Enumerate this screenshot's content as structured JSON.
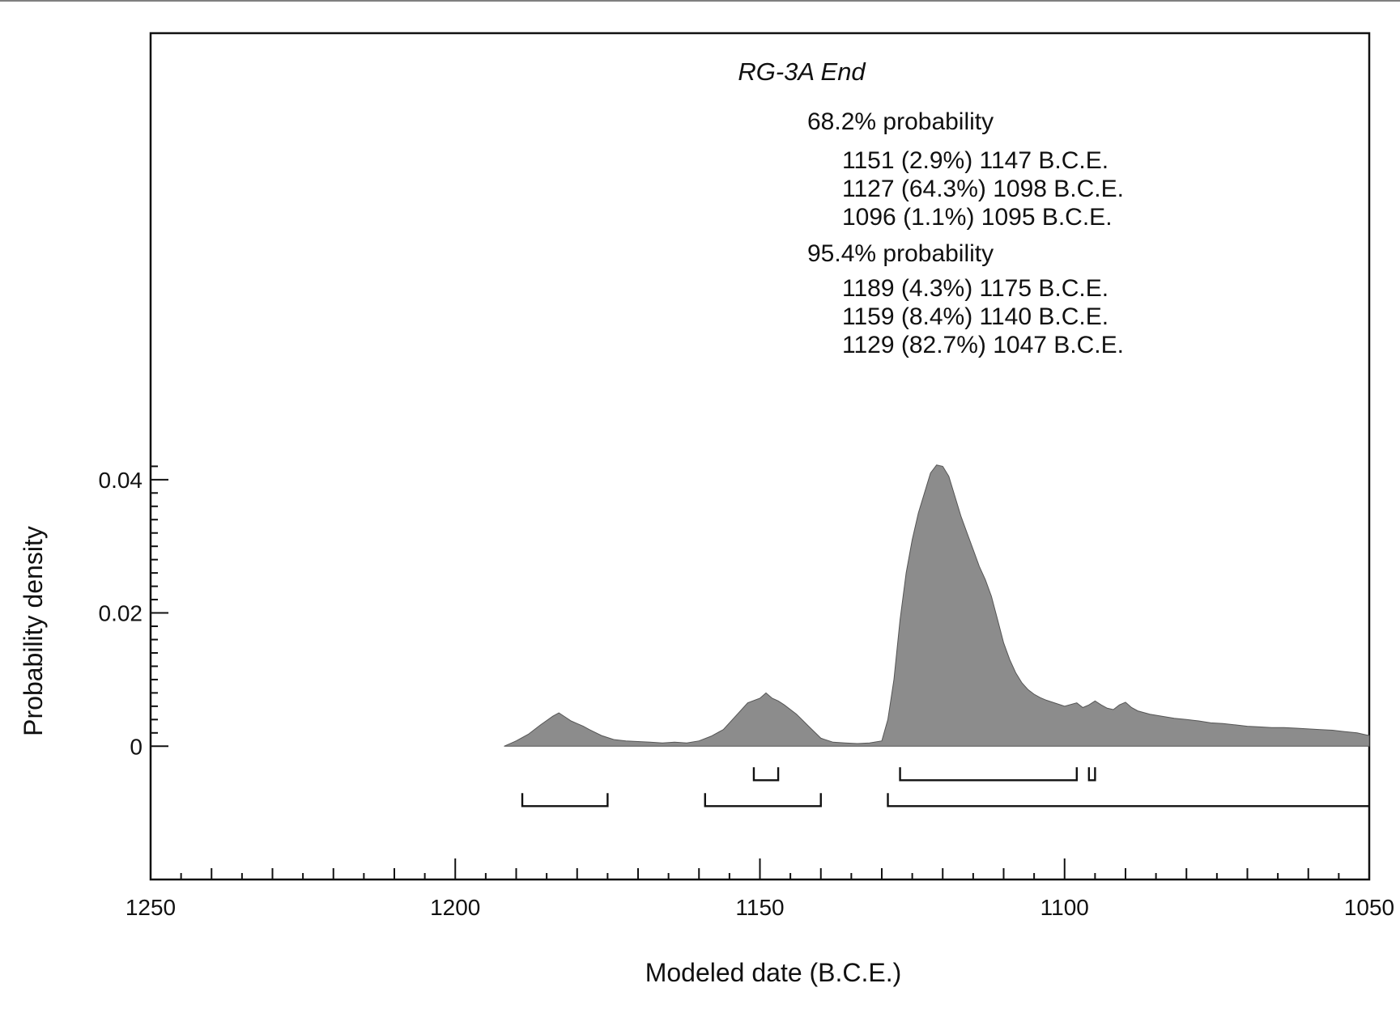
{
  "chart_data": {
    "type": "area",
    "title": "RG-3A End",
    "xlabel": "Modeled date (B.C.E.)",
    "ylabel": "Probability density",
    "xlim": [
      1250,
      1050
    ],
    "x_reversed": true,
    "ylim": [
      -0.02,
      0.107
    ],
    "x_ticks": [
      1250,
      1200,
      1150,
      1100,
      1050
    ],
    "y_ticks": [
      {
        "value": 0,
        "label": "0"
      },
      {
        "value": 0.02,
        "label": "0.02"
      },
      {
        "value": 0.04,
        "label": "0.04"
      }
    ],
    "density": {
      "x": [
        1192,
        1190,
        1188,
        1186,
        1184,
        1183,
        1182,
        1181,
        1180,
        1179,
        1178,
        1176,
        1174,
        1172,
        1170,
        1168,
        1166,
        1164,
        1162,
        1160,
        1158,
        1156,
        1154,
        1152,
        1150,
        1149,
        1148,
        1147,
        1146,
        1144,
        1142,
        1140,
        1138,
        1136,
        1134,
        1132,
        1130,
        1129,
        1128,
        1127,
        1126,
        1125,
        1124,
        1123,
        1122,
        1121,
        1120,
        1119,
        1118,
        1117,
        1116,
        1115,
        1114,
        1113,
        1112,
        1111,
        1110,
        1109,
        1108,
        1107,
        1106,
        1105,
        1104,
        1103,
        1102,
        1100,
        1098,
        1097,
        1096,
        1095,
        1094,
        1093,
        1092,
        1091,
        1090,
        1089,
        1088,
        1086,
        1084,
        1082,
        1080,
        1078,
        1076,
        1074,
        1072,
        1070,
        1068,
        1066,
        1064,
        1062,
        1060,
        1058,
        1056,
        1054,
        1052,
        1050
      ],
      "y": [
        0.0,
        0.0008,
        0.0018,
        0.0032,
        0.0045,
        0.005,
        0.0044,
        0.0038,
        0.0034,
        0.003,
        0.0025,
        0.0016,
        0.001,
        0.0008,
        0.0007,
        0.0006,
        0.0005,
        0.0006,
        0.0005,
        0.0008,
        0.0015,
        0.0025,
        0.0045,
        0.0065,
        0.0072,
        0.008,
        0.0072,
        0.0068,
        0.0062,
        0.0048,
        0.003,
        0.0012,
        0.0006,
        0.0005,
        0.0004,
        0.0005,
        0.0008,
        0.004,
        0.01,
        0.019,
        0.026,
        0.031,
        0.035,
        0.038,
        0.041,
        0.0422,
        0.042,
        0.0405,
        0.0375,
        0.0345,
        0.032,
        0.0295,
        0.027,
        0.025,
        0.0225,
        0.019,
        0.0155,
        0.013,
        0.011,
        0.0095,
        0.0085,
        0.0078,
        0.0073,
        0.0069,
        0.0066,
        0.006,
        0.0065,
        0.0058,
        0.0062,
        0.0068,
        0.0062,
        0.0057,
        0.0055,
        0.0062,
        0.0066,
        0.0058,
        0.0053,
        0.0048,
        0.0045,
        0.0042,
        0.004,
        0.0038,
        0.0035,
        0.0034,
        0.0032,
        0.003,
        0.0029,
        0.0028,
        0.0028,
        0.0027,
        0.0026,
        0.0025,
        0.0024,
        0.0022,
        0.002,
        0.0016
      ]
    },
    "ranges_68_2": [
      {
        "from": 1151,
        "to": 1147
      },
      {
        "from": 1127,
        "to": 1098
      },
      {
        "from": 1096,
        "to": 1095
      }
    ],
    "ranges_95_4": [
      {
        "from": 1189,
        "to": 1175
      },
      {
        "from": 1159,
        "to": 1140
      },
      {
        "from": 1129,
        "to": 1047
      }
    ],
    "annotations": {
      "heading_68": "68.2% probability",
      "lines_68": [
        "1151 (2.9%) 1147 B.C.E.",
        "1127 (64.3%) 1098 B.C.E.",
        "1096 (1.1%) 1095 B.C.E."
      ],
      "heading_95": "95.4% probability",
      "lines_95": [
        "1189 (4.3%) 1175 B.C.E.",
        "1159 (8.4%) 1140 B.C.E.",
        "1129 (82.7%) 1047 B.C.E."
      ]
    },
    "grid": false,
    "legend": "none",
    "colors": {
      "fill": "#8c8c8c",
      "outline": "#555555",
      "axis": "#111111"
    }
  }
}
